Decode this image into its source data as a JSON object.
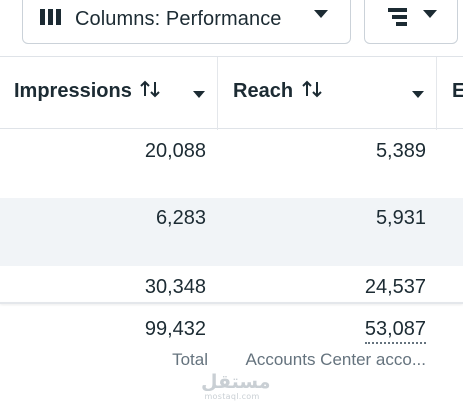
{
  "toolbar": {
    "columns_button": {
      "label": "Columns: Performance",
      "icon": "columns-icon"
    },
    "breakdown_button": {
      "icon": "breakdown-icon"
    }
  },
  "table": {
    "headers": [
      {
        "label": "Impressions",
        "sort_icon": "sort-icon"
      },
      {
        "label": "Reach",
        "sort_icon": "sort-icon"
      },
      {
        "label": "E"
      }
    ],
    "rows": [
      {
        "impressions": "20,088",
        "reach": "5,389"
      },
      {
        "impressions": "6,283",
        "reach": "5,931"
      },
      {
        "impressions": "30,348",
        "reach": "24,537"
      }
    ],
    "totals": {
      "impressions": "99,432",
      "impressions_caption": "Total",
      "reach": "53,087",
      "reach_caption": "Accounts Center acco..."
    }
  },
  "watermark": {
    "logo": "مستقل",
    "site": "mostaql.com"
  },
  "colors": {
    "text": "#1c2b33",
    "muted": "#65737e",
    "row_alt": "#f1f4f7",
    "border": "#cbd2d9"
  }
}
